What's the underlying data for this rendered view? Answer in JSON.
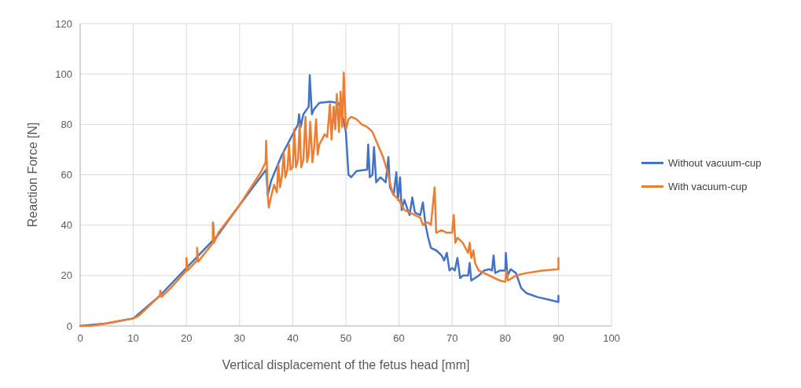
{
  "chart_data": {
    "type": "line",
    "xlabel": "Vertical displacement of the fetus head [mm]",
    "ylabel": "Reaction Force [N]",
    "xlim": [
      0,
      100
    ],
    "xticks": [
      0,
      10,
      20,
      30,
      40,
      50,
      60,
      70,
      80,
      90,
      100
    ],
    "ylim": [
      0,
      120
    ],
    "yticks": [
      0,
      20,
      40,
      60,
      80,
      100,
      120
    ],
    "grid": true,
    "legend": "right",
    "line_style": "solid",
    "series": [
      {
        "name": "Without vacuum-cup",
        "color": "#4472c4",
        "x": [
          0,
          5,
          10,
          15,
          20,
          25,
          25,
          25.2,
          30,
          35,
          35.3,
          36,
          38,
          40,
          41,
          41.2,
          41.5,
          42,
          43,
          43.2,
          43.6,
          44,
          45,
          47,
          48.5,
          49,
          50,
          50.5,
          51,
          52,
          54,
          54.2,
          54.5,
          55,
          55.3,
          55.7,
          56.5,
          57.5,
          58,
          58.3,
          59,
          59.5,
          59.8,
          60.2,
          60.5,
          61,
          62,
          62.5,
          63,
          64,
          64.5,
          65,
          65.5,
          66,
          67,
          68,
          68.5,
          69,
          69.5,
          70,
          70.5,
          71,
          71.5,
          72,
          73,
          73.3,
          73.6,
          75,
          76,
          77,
          77.5,
          77.8,
          78.1,
          79,
          80,
          80.1,
          80.4,
          81,
          82,
          83,
          84,
          86,
          88,
          90,
          90
        ],
        "values": [
          0,
          1,
          3,
          12,
          23,
          34,
          41,
          34,
          48,
          62,
          52,
          58,
          68,
          76,
          80,
          84,
          79,
          84,
          87,
          99.5,
          84,
          86,
          88.5,
          89,
          88.5,
          87,
          77,
          60,
          59,
          61.5,
          62,
          72,
          59,
          60,
          71,
          57,
          59,
          57,
          67,
          55,
          52,
          61,
          50,
          59,
          46,
          50,
          44,
          51,
          45,
          44,
          49,
          40,
          35,
          31,
          30,
          28,
          26,
          29,
          22,
          23,
          22,
          27,
          19,
          20,
          20,
          25,
          18,
          20,
          22,
          22.5,
          22,
          28,
          21,
          22,
          22,
          29,
          20,
          22.5,
          21,
          15,
          13,
          11.5,
          10.5,
          9.5,
          12
        ]
      },
      {
        "name": "With vacuum-cup",
        "color": "#ed7d31",
        "x": [
          0,
          2,
          5,
          6,
          10,
          11,
          12,
          14,
          15,
          15.1,
          15.3,
          17,
          20,
          20,
          20.2,
          22,
          22,
          22.2,
          25,
          25,
          25.2,
          26,
          30,
          34,
          34.9,
          35,
          35.3,
          35.5,
          36,
          36.5,
          37,
          37.3,
          37.6,
          38,
          38.3,
          38.6,
          39,
          39.3,
          39.6,
          40,
          40.3,
          40.6,
          41,
          41.3,
          41.6,
          42,
          42.4,
          42.7,
          43,
          43.3,
          43.7,
          44,
          44.4,
          44.7,
          45,
          45.5,
          46,
          46.5,
          47,
          47.3,
          47.7,
          48,
          48.3,
          48.7,
          49,
          49.3,
          49.6,
          50,
          50.5,
          51,
          52,
          53,
          54,
          55,
          56,
          57,
          58,
          58.5,
          59,
          60,
          61,
          62,
          63,
          64,
          64.5,
          65,
          65.5,
          66,
          66.7,
          67,
          68,
          69,
          70,
          70.3,
          70.6,
          71,
          72,
          73,
          73.3,
          73.6,
          74,
          74.3,
          75,
          77,
          79,
          80,
          80.2,
          80.5,
          82,
          84,
          87,
          90,
          90
        ],
        "values": [
          0,
          0,
          1,
          1.5,
          3,
          4,
          6,
          10,
          12,
          14,
          11.5,
          15,
          22,
          27,
          22,
          26,
          31,
          25.5,
          33,
          41,
          33,
          37,
          48,
          61,
          65,
          73.5,
          52,
          47,
          52,
          56,
          53,
          64,
          55,
          60,
          69,
          59,
          62,
          72,
          62,
          63,
          78,
          63,
          66,
          80,
          63,
          66,
          83,
          65,
          68,
          81,
          65,
          70,
          82,
          68,
          72,
          74,
          76,
          75,
          88,
          74,
          87,
          78,
          92,
          77,
          93,
          79,
          100.5,
          78,
          82,
          83,
          82,
          80,
          79,
          77,
          72,
          67,
          60,
          55,
          52,
          50,
          46,
          45,
          44,
          43,
          40,
          41,
          41,
          40,
          55,
          37,
          38,
          37,
          37,
          44,
          33,
          35,
          33,
          29,
          33,
          27,
          30,
          25,
          22,
          20,
          18,
          17.5,
          22,
          18,
          20,
          21,
          22,
          22.5,
          27
        ]
      }
    ]
  }
}
